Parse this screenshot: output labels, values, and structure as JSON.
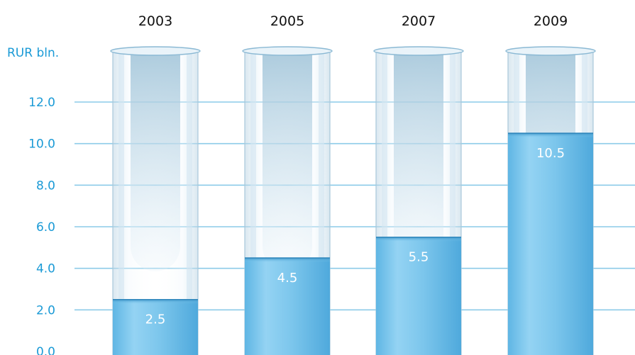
{
  "chart_data": {
    "type": "bar",
    "style": "test-tube cylinders filled with water",
    "ylabel": "RUR bln.",
    "categories": [
      "2003",
      "2005",
      "2007",
      "2009"
    ],
    "values": [
      2.5,
      4.5,
      5.5,
      10.5
    ],
    "data_labels": [
      "2.5",
      "4.5",
      "5.5",
      "10.5"
    ],
    "yticks": [
      "0.0",
      "2.0",
      "4.0",
      "6.0",
      "8.0",
      "10.0",
      "12.0"
    ],
    "ylim": [
      0,
      12
    ],
    "grid": true,
    "colors": {
      "gridline": "#8ccbe8",
      "tick_text": "#1a9ad6",
      "water": "#7cc6ec",
      "glass": "#cfe2ee",
      "category_text": "#111111"
    }
  }
}
